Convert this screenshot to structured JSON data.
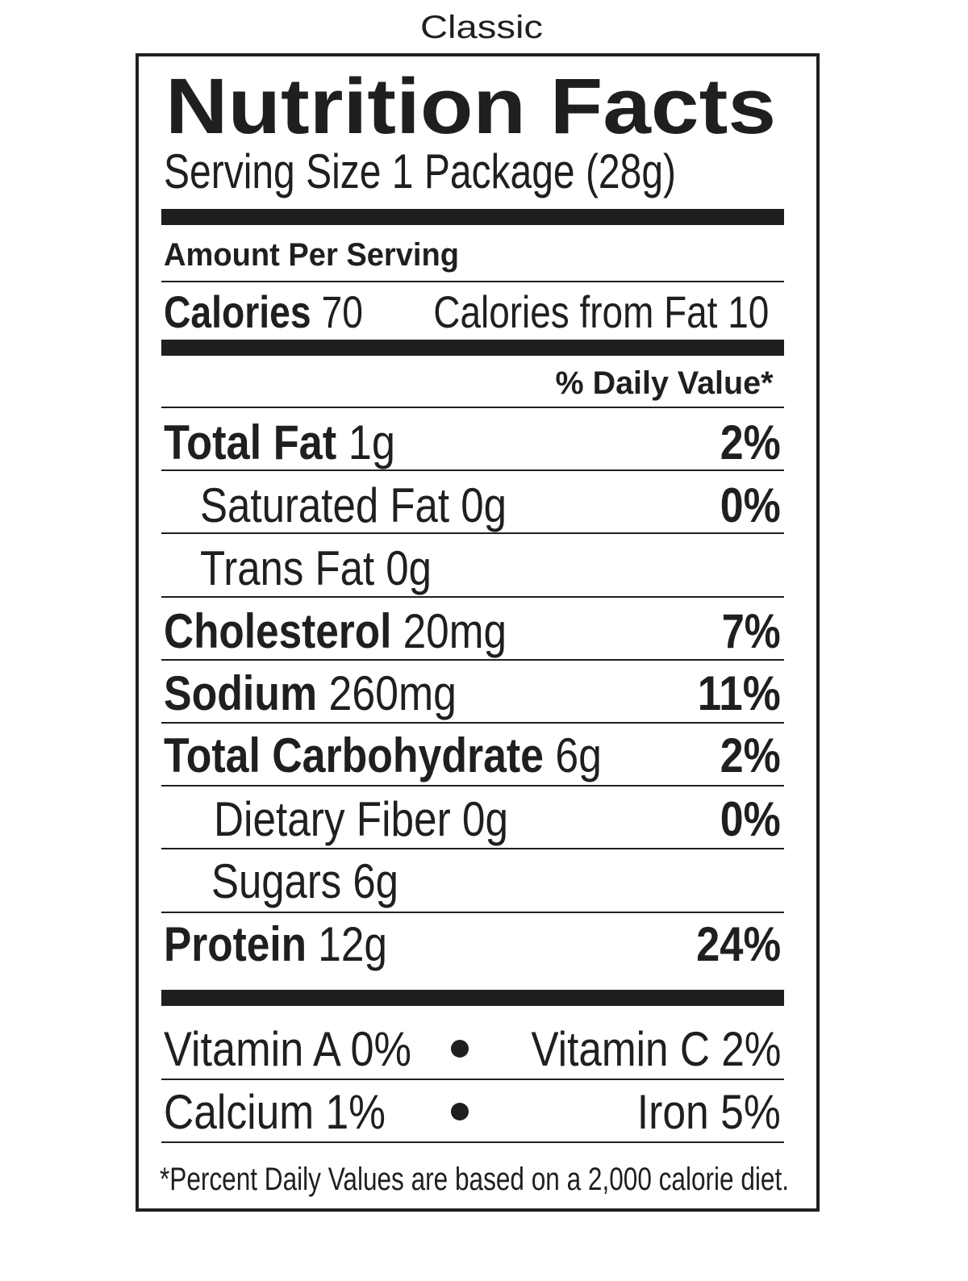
{
  "variant": "Classic",
  "title": "Nutrition Facts",
  "serving_size": "Serving Size 1 Package (28g)",
  "amount_per_serving": "Amount Per Serving",
  "calories": {
    "label": "Calories",
    "value": "70"
  },
  "calories_from_fat": "Calories from Fat 10",
  "daily_value_header": "% Daily Value*",
  "nutrients": [
    {
      "label": "Total Fat",
      "amount": "1g",
      "dv": "2%"
    },
    {
      "label": "Saturated Fat",
      "amount": "0g",
      "dv": "0%"
    },
    {
      "label": "Trans Fat",
      "amount": "0g"
    },
    {
      "label": "Cholesterol",
      "amount": "20mg",
      "dv": "7%"
    },
    {
      "label": "Sodium",
      "amount": "260mg",
      "dv": "11%"
    },
    {
      "label": "Total Carbohydrate",
      "amount": "6g",
      "dv": "2%"
    },
    {
      "label": "Dietary Fiber",
      "amount": "0g",
      "dv": "0%"
    },
    {
      "label": "Sugars",
      "amount": "6g"
    },
    {
      "label": "Protein",
      "amount": "12g",
      "dv": "24%"
    }
  ],
  "vitamins": [
    {
      "left": "Vitamin A 0%",
      "right": "Vitamin C 2%"
    },
    {
      "left": "Calcium 1%",
      "right": "Iron 5%"
    }
  ],
  "footnote": "*Percent Daily Values are based on a 2,000 calorie diet."
}
